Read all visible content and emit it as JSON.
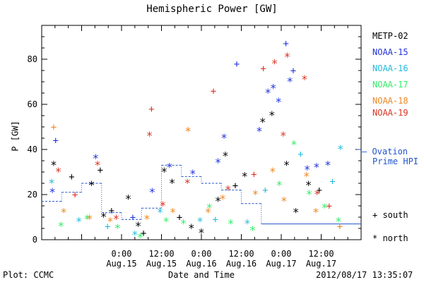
{
  "chart_data": {
    "type": "scatter",
    "title": "Hemispheric Power [GW]",
    "ylabel": "P [GW]",
    "xlabel": "Date and Time",
    "ylim": [
      0,
      95
    ],
    "yticks": [
      0,
      20,
      40,
      60,
      80
    ],
    "x_unit": "hours since 2012/08/14 12:00",
    "xlim": [
      0,
      48
    ],
    "xticks": [
      {
        "x": 12,
        "line1": "0:00",
        "line2": "Aug.15"
      },
      {
        "x": 18,
        "line1": "12:00",
        "line2": "Aug.15"
      },
      {
        "x": 24,
        "line1": "0:00",
        "line2": "Aug.16"
      },
      {
        "x": 30,
        "line1": "12:00",
        "line2": "Aug.16"
      },
      {
        "x": 36,
        "line1": "0:00",
        "line2": "Aug.17"
      },
      {
        "x": 42,
        "line1": "12:00",
        "line2": "Aug.17"
      }
    ],
    "series": [
      {
        "name": "METP-02",
        "color": "#000000",
        "points": [
          {
            "x": 1.8,
            "y": 33,
            "m": "*"
          },
          {
            "x": 4.5,
            "y": 28,
            "m": "+"
          },
          {
            "x": 7.5,
            "y": 24,
            "m": "*"
          },
          {
            "x": 8.8,
            "y": 31,
            "m": "+"
          },
          {
            "x": 9.3,
            "y": 10,
            "m": "*"
          },
          {
            "x": 10.5,
            "y": 13,
            "m": "+"
          },
          {
            "x": 13,
            "y": 18,
            "m": "*"
          },
          {
            "x": 14.5,
            "y": 6,
            "m": "*"
          },
          {
            "x": 15.3,
            "y": 3,
            "m": "+"
          },
          {
            "x": 18.4,
            "y": 30,
            "m": "*"
          },
          {
            "x": 19.6,
            "y": 25,
            "m": "*"
          },
          {
            "x": 20.7,
            "y": 10,
            "m": "+"
          },
          {
            "x": 22.5,
            "y": 5,
            "m": "*"
          },
          {
            "x": 24,
            "y": 3,
            "m": "*"
          },
          {
            "x": 26.5,
            "y": 17,
            "m": "*"
          },
          {
            "x": 27.6,
            "y": 37,
            "m": "*"
          },
          {
            "x": 29.1,
            "y": 24,
            "m": "+"
          },
          {
            "x": 30.5,
            "y": 28,
            "m": "*"
          },
          {
            "x": 33.2,
            "y": 52,
            "m": "*"
          },
          {
            "x": 34.6,
            "y": 55,
            "m": "*"
          },
          {
            "x": 36.8,
            "y": 33,
            "m": "*"
          },
          {
            "x": 38.2,
            "y": 12,
            "m": "*"
          },
          {
            "x": 40.1,
            "y": 24,
            "m": "*"
          },
          {
            "x": 41.7,
            "y": 22,
            "m": "+"
          }
        ]
      },
      {
        "name": "NOAA-15",
        "color": "#2233dd",
        "points": [
          {
            "x": 1.6,
            "y": 21,
            "m": "*"
          },
          {
            "x": 2.1,
            "y": 44,
            "m": "+"
          },
          {
            "x": 8.1,
            "y": 36,
            "m": "*"
          },
          {
            "x": 13.7,
            "y": 10,
            "m": "+"
          },
          {
            "x": 16.6,
            "y": 21,
            "m": "*"
          },
          {
            "x": 19.2,
            "y": 32,
            "m": "*"
          },
          {
            "x": 22.7,
            "y": 29,
            "m": "*"
          },
          {
            "x": 26.5,
            "y": 34,
            "m": "*"
          },
          {
            "x": 27.4,
            "y": 45,
            "m": "*"
          },
          {
            "x": 29.3,
            "y": 78,
            "m": "+"
          },
          {
            "x": 32.7,
            "y": 48,
            "m": "*"
          },
          {
            "x": 34.0,
            "y": 65,
            "m": "*"
          },
          {
            "x": 34.8,
            "y": 67,
            "m": "*"
          },
          {
            "x": 35.6,
            "y": 61,
            "m": "*"
          },
          {
            "x": 36.7,
            "y": 87,
            "m": "+"
          },
          {
            "x": 37.3,
            "y": 70,
            "m": "*"
          },
          {
            "x": 37.8,
            "y": 75,
            "m": "+"
          },
          {
            "x": 39.9,
            "y": 31,
            "m": "*"
          },
          {
            "x": 41.3,
            "y": 32,
            "m": "*"
          },
          {
            "x": 43.0,
            "y": 33,
            "m": "*"
          }
        ]
      },
      {
        "name": "NOAA-16",
        "color": "#22bbdd",
        "points": [
          {
            "x": 1.5,
            "y": 25,
            "m": "*"
          },
          {
            "x": 5.6,
            "y": 8,
            "m": "*"
          },
          {
            "x": 9.9,
            "y": 6,
            "m": "+"
          },
          {
            "x": 14.0,
            "y": 2,
            "m": "*"
          },
          {
            "x": 17.8,
            "y": 12,
            "m": "*"
          },
          {
            "x": 23.8,
            "y": 8,
            "m": "*"
          },
          {
            "x": 26.1,
            "y": 9,
            "m": "+"
          },
          {
            "x": 30.9,
            "y": 7,
            "m": "*"
          },
          {
            "x": 33.6,
            "y": 22,
            "m": "+"
          },
          {
            "x": 38.9,
            "y": 38,
            "m": "+"
          },
          {
            "x": 43.7,
            "y": 26,
            "m": "+"
          },
          {
            "x": 44.9,
            "y": 40,
            "m": "*"
          }
        ]
      },
      {
        "name": "NOAA-17",
        "color": "#33ee66",
        "points": [
          {
            "x": 2.9,
            "y": 6,
            "m": "*"
          },
          {
            "x": 6.8,
            "y": 9,
            "m": "*"
          },
          {
            "x": 11.4,
            "y": 5,
            "m": "*"
          },
          {
            "x": 14.8,
            "y": 1,
            "m": "*"
          },
          {
            "x": 18.7,
            "y": 8,
            "m": "*"
          },
          {
            "x": 21.3,
            "y": 7,
            "m": "*"
          },
          {
            "x": 25.2,
            "y": 14,
            "m": "*"
          },
          {
            "x": 28.4,
            "y": 7,
            "m": "*"
          },
          {
            "x": 31.7,
            "y": 4,
            "m": "*"
          },
          {
            "x": 35.7,
            "y": 24,
            "m": "*"
          },
          {
            "x": 37.9,
            "y": 42,
            "m": "*"
          },
          {
            "x": 40.2,
            "y": 20,
            "m": "*"
          },
          {
            "x": 42.5,
            "y": 14,
            "m": "*"
          },
          {
            "x": 44.6,
            "y": 8,
            "m": "*"
          }
        ]
      },
      {
        "name": "NOAA-18",
        "color": "#ee8822",
        "points": [
          {
            "x": 1.8,
            "y": 50,
            "m": "+"
          },
          {
            "x": 3.3,
            "y": 12,
            "m": "*"
          },
          {
            "x": 7.2,
            "y": 9,
            "m": "*"
          },
          {
            "x": 10.3,
            "y": 8,
            "m": "*"
          },
          {
            "x": 15.8,
            "y": 9,
            "m": "*"
          },
          {
            "x": 19.7,
            "y": 12,
            "m": "*"
          },
          {
            "x": 22.0,
            "y": 48,
            "m": "*"
          },
          {
            "x": 25.0,
            "y": 12,
            "m": "*"
          },
          {
            "x": 27.2,
            "y": 18,
            "m": "*"
          },
          {
            "x": 32.1,
            "y": 20,
            "m": "*"
          },
          {
            "x": 34.7,
            "y": 30,
            "m": "*"
          },
          {
            "x": 36.4,
            "y": 17,
            "m": "*"
          },
          {
            "x": 39.8,
            "y": 28,
            "m": "*"
          },
          {
            "x": 41.2,
            "y": 12,
            "m": "*"
          },
          {
            "x": 44.8,
            "y": 6,
            "m": "+"
          }
        ]
      },
      {
        "name": "NOAA-19",
        "color": "#dd3322",
        "points": [
          {
            "x": 2.5,
            "y": 30,
            "m": "*"
          },
          {
            "x": 5.0,
            "y": 20,
            "m": "+"
          },
          {
            "x": 8.4,
            "y": 33,
            "m": "*"
          },
          {
            "x": 11.2,
            "y": 9,
            "m": "*"
          },
          {
            "x": 16.2,
            "y": 46,
            "m": "*"
          },
          {
            "x": 16.5,
            "y": 58,
            "m": "+"
          },
          {
            "x": 18.2,
            "y": 15,
            "m": "*"
          },
          {
            "x": 21.9,
            "y": 25,
            "m": "*"
          },
          {
            "x": 25.8,
            "y": 66,
            "m": "+"
          },
          {
            "x": 28.0,
            "y": 22,
            "m": "*"
          },
          {
            "x": 31.9,
            "y": 29,
            "m": "+"
          },
          {
            "x": 33.3,
            "y": 76,
            "m": "+"
          },
          {
            "x": 35.0,
            "y": 78,
            "m": "*"
          },
          {
            "x": 36.3,
            "y": 46,
            "m": "*"
          },
          {
            "x": 36.9,
            "y": 81,
            "m": "*"
          },
          {
            "x": 39.5,
            "y": 71,
            "m": "*"
          },
          {
            "x": 41.4,
            "y": 20,
            "m": "*"
          },
          {
            "x": 43.2,
            "y": 15,
            "m": "+"
          }
        ]
      }
    ],
    "ovation": {
      "label_line1": "— Ovation",
      "label_line2": "Prime HPI",
      "color": "#2255cc",
      "note_value": 40,
      "segments": [
        {
          "x0": 0,
          "x1": 3,
          "y": 17
        },
        {
          "x0": 3,
          "x1": 6,
          "y": 21
        },
        {
          "x0": 6,
          "x1": 9,
          "y": 25
        },
        {
          "x0": 9,
          "x1": 12,
          "y": 12
        },
        {
          "x0": 12,
          "x1": 15,
          "y": 9
        },
        {
          "x0": 15,
          "x1": 18,
          "y": 14
        },
        {
          "x0": 18,
          "x1": 21,
          "y": 33
        },
        {
          "x0": 21,
          "x1": 24,
          "y": 28
        },
        {
          "x0": 24,
          "x1": 27,
          "y": 25
        },
        {
          "x0": 27,
          "x1": 30,
          "y": 22
        },
        {
          "x0": 30,
          "x1": 33,
          "y": 16
        },
        {
          "x0": 33,
          "x1": 48,
          "y": 7
        }
      ]
    }
  },
  "legend": {
    "items": [
      {
        "name": "METP-02",
        "color": "#000000"
      },
      {
        "name": "NOAA-15",
        "color": "#2233dd"
      },
      {
        "name": "NOAA-16",
        "color": "#22bbdd"
      },
      {
        "name": "NOAA-17",
        "color": "#33ee66"
      },
      {
        "name": "NOAA-18",
        "color": "#ee8822"
      },
      {
        "name": "NOAA-19",
        "color": "#dd3322"
      }
    ]
  },
  "markers": {
    "south": "+ south",
    "north": "* north"
  },
  "footer": {
    "left": "Plot: CCMC",
    "right": "2012/08/17 13:35:07"
  }
}
